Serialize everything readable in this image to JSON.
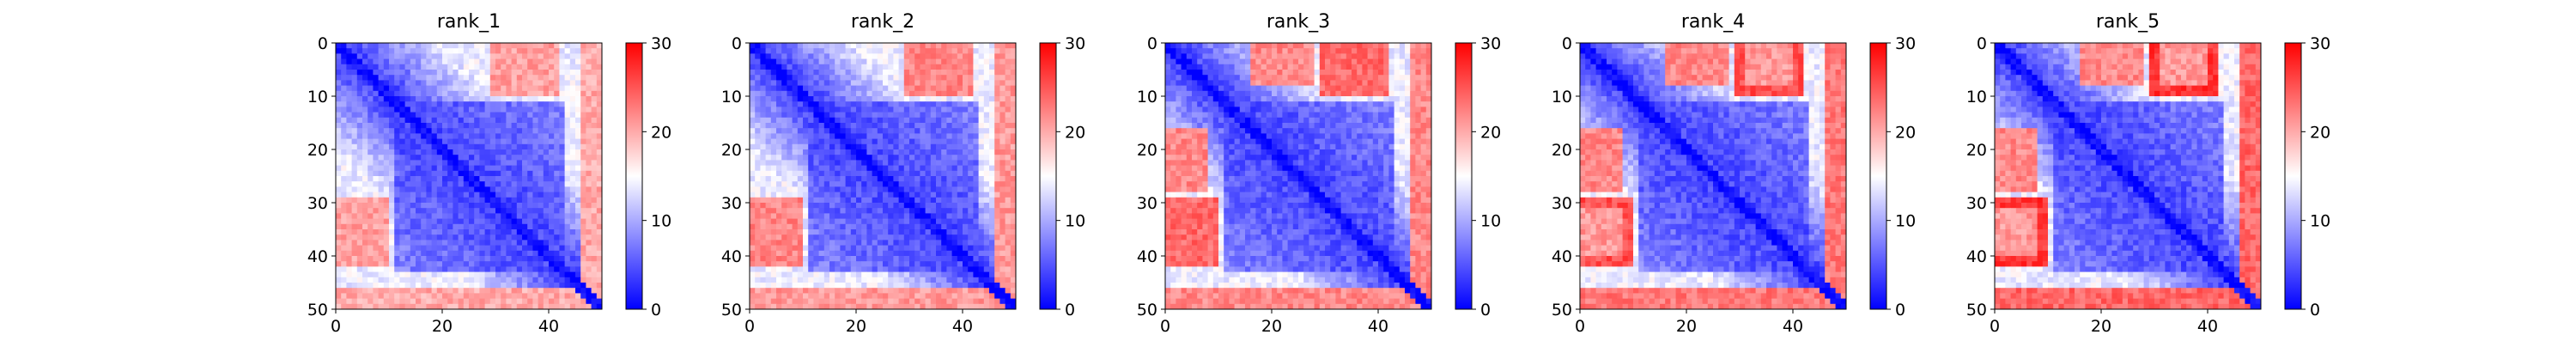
{
  "chart_data": [
    {
      "type": "heatmap",
      "title": "rank_1",
      "xticks": [
        "0",
        "20",
        "40"
      ],
      "yticks": [
        "0",
        "10",
        "20",
        "30",
        "40",
        "50"
      ],
      "colorbar": {
        "ticks": [
          "0",
          "10",
          "20",
          "30"
        ],
        "range": [
          0,
          30
        ],
        "colormap": "bwr"
      },
      "matrix_size": 50,
      "description": "Predicted aligned error matrix, low (blue) along the diagonal and in a central block, high (red) in off-diagonal corners and the last rows near residue 45-50"
    },
    {
      "type": "heatmap",
      "title": "rank_2",
      "xticks": [
        "0",
        "20",
        "40"
      ],
      "yticks": [
        "0",
        "10",
        "20",
        "30",
        "40",
        "50"
      ],
      "colorbar": {
        "ticks": [
          "0",
          "10",
          "20",
          "30"
        ],
        "range": [
          0,
          30
        ],
        "colormap": "bwr"
      },
      "matrix_size": 50
    },
    {
      "type": "heatmap",
      "title": "rank_3",
      "xticks": [
        "0",
        "20",
        "40"
      ],
      "yticks": [
        "0",
        "10",
        "20",
        "30",
        "40",
        "50"
      ],
      "colorbar": {
        "ticks": [
          "0",
          "10",
          "20",
          "30"
        ],
        "range": [
          0,
          30
        ],
        "colormap": "bwr"
      },
      "matrix_size": 50
    },
    {
      "type": "heatmap",
      "title": "rank_4",
      "xticks": [
        "0",
        "20",
        "40"
      ],
      "yticks": [
        "0",
        "10",
        "20",
        "30",
        "40",
        "50"
      ],
      "colorbar": {
        "ticks": [
          "0",
          "10",
          "20",
          "30"
        ],
        "range": [
          0,
          30
        ],
        "colormap": "bwr"
      },
      "matrix_size": 50
    },
    {
      "type": "heatmap",
      "title": "rank_5",
      "xticks": [
        "0",
        "20",
        "40"
      ],
      "yticks": [
        "0",
        "10",
        "20",
        "30",
        "40",
        "50"
      ],
      "colorbar": {
        "ticks": [
          "0",
          "10",
          "20",
          "30"
        ],
        "range": [
          0,
          30
        ],
        "colormap": "bwr"
      },
      "matrix_size": 50
    }
  ],
  "colors": {
    "low": "#0000ff",
    "mid": "#ffffff",
    "high": "#ff0000"
  }
}
